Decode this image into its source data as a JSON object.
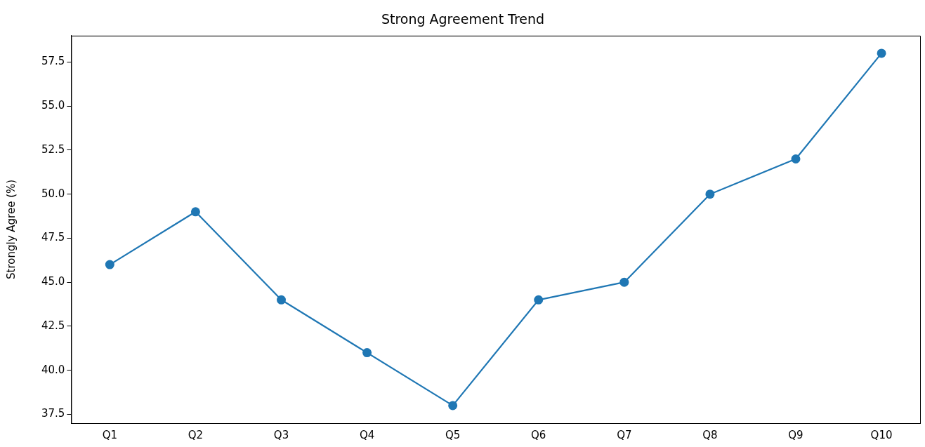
{
  "chart_data": {
    "type": "line",
    "title": "Strong Agreement Trend",
    "ylabel": "Strongly Agree (%)",
    "categories": [
      "Q1",
      "Q2",
      "Q3",
      "Q4",
      "Q5",
      "Q6",
      "Q7",
      "Q8",
      "Q9",
      "Q10"
    ],
    "series": [
      {
        "color": "#1f77b4",
        "values": [
          46,
          49,
          44,
          41,
          38,
          44,
          45,
          50,
          52,
          58
        ]
      }
    ],
    "ylim": [
      37,
      59
    ],
    "yticks": [
      37.5,
      {
        "value": 40,
        "label": "40.0"
      },
      42.5,
      {
        "value": 45,
        "label": "45.0"
      },
      47.5,
      {
        "value": 50,
        "label": "50.0"
      },
      52.5,
      {
        "value": 55,
        "label": "55.0"
      },
      57.5
    ],
    "marker": "circle",
    "line_style": "solid"
  }
}
